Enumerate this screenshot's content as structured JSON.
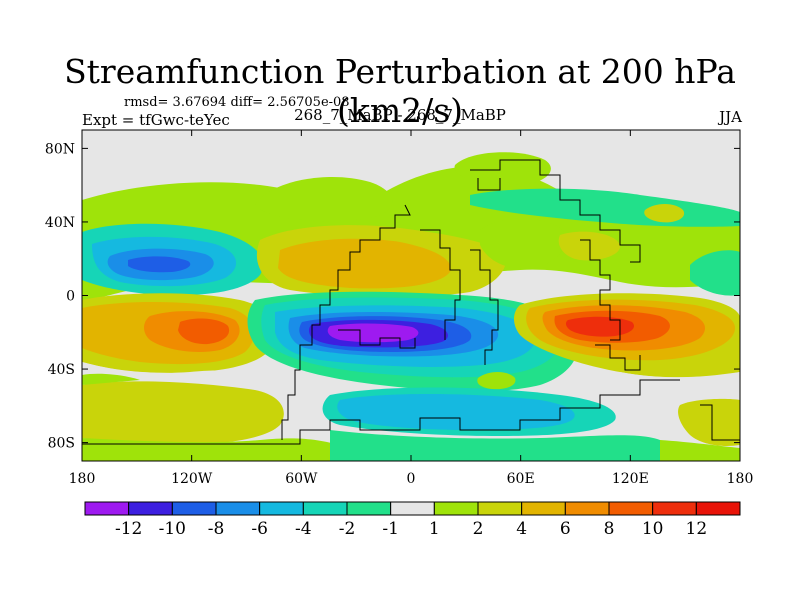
{
  "title": "Streamfunction Perturbation at 200 hPa (km2/s)",
  "subtitle_left_top": "rmsd= 3.67694 diff= 2.56705e-08",
  "subtitle_left": "Expt = tfGwc-teYec",
  "subtitle_center": "268_7_MaBP - 268_7_MaBP",
  "subtitle_right": "JJA",
  "chart_data": {
    "type": "heatmap",
    "projection": "cylindrical equidistant",
    "variable": "Streamfunction Perturbation at 200 hPa",
    "units": "km2/s",
    "x_range": [
      -180,
      180
    ],
    "y_range": [
      -90,
      90
    ],
    "x_ticks": [
      -180,
      -120,
      -60,
      0,
      60,
      120,
      180
    ],
    "x_tick_labels": [
      "180",
      "120W",
      "60W",
      "0",
      "60E",
      "120E",
      "180"
    ],
    "y_ticks": [
      80,
      40,
      0,
      -40,
      -80
    ],
    "y_tick_labels": [
      "80N",
      "40N",
      "0",
      "40S",
      "80S"
    ],
    "colorbar": {
      "levels": [
        -12,
        -10,
        -8,
        -6,
        -4,
        -2,
        -1,
        1,
        2,
        4,
        6,
        8,
        10,
        12
      ],
      "level_labels": [
        "-12",
        "-10",
        "-8",
        "-6",
        "-4",
        "-2",
        "-1",
        "1",
        "2",
        "4",
        "6",
        "8",
        "10",
        "12"
      ],
      "colors": [
        "#9e1af0",
        "#3d1fe0",
        "#1e5ee6",
        "#1a8ee8",
        "#15b9e0",
        "#16d5b7",
        "#22e08a",
        "#e6e6e6",
        "#9fe30a",
        "#c9d40a",
        "#e2b400",
        "#f08c00",
        "#f25c00",
        "#ee2e0c",
        "#e81308"
      ]
    },
    "features": [
      {
        "name": "negative minimum over South Atlantic",
        "lon": -25,
        "lat": -22,
        "value": -12
      },
      {
        "name": "positive maximum over South Pacific",
        "lon": -110,
        "lat": -18,
        "value": 10
      },
      {
        "name": "positive maximum over Indian Ocean",
        "lon": 100,
        "lat": -15,
        "value": 10
      },
      {
        "name": "positive ridge over North Atlantic",
        "lon": -25,
        "lat": 20,
        "value": 6
      },
      {
        "name": "negative trough over North Pacific",
        "lon": -145,
        "lat": 16,
        "value": -8
      },
      {
        "name": "negative band over South Indian Ocean",
        "lon": 40,
        "lat": -55,
        "value": -4
      }
    ]
  }
}
